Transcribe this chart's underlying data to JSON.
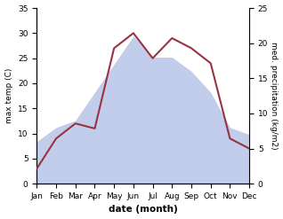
{
  "months": [
    "Jan",
    "Feb",
    "Mar",
    "Apr",
    "May",
    "Jun",
    "Jul",
    "Aug",
    "Sep",
    "Oct",
    "Nov",
    "Dec"
  ],
  "temperature": [
    3,
    9,
    12,
    11,
    27,
    30,
    25,
    29,
    27,
    24,
    9,
    7
  ],
  "precipitation": [
    6,
    8,
    9,
    13,
    17,
    21,
    18,
    18,
    16,
    13,
    8,
    7
  ],
  "temp_color": "#993344",
  "precip_color_fill": "#b8c4e8",
  "temp_ylim": [
    0,
    35
  ],
  "precip_ylim": [
    0,
    25
  ],
  "temp_yticks": [
    0,
    5,
    10,
    15,
    20,
    25,
    30,
    35
  ],
  "precip_yticks": [
    0,
    5,
    10,
    15,
    20,
    25
  ],
  "xlabel": "date (month)",
  "ylabel_left": "max temp (C)",
  "ylabel_right": "med. precipitation (kg/m2)",
  "figsize": [
    3.18,
    2.47
  ],
  "dpi": 100
}
